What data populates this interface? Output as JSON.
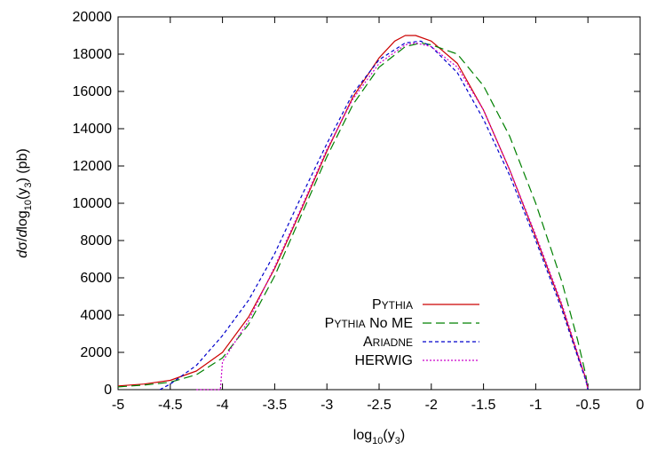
{
  "chart_data": {
    "type": "line",
    "xlabel": {
      "base": "log",
      "sub1": "10",
      "mid": "(y",
      "sub2": "3",
      "end": ")"
    },
    "ylabel": {
      "pre": "d",
      "sigma": "σ",
      "slash": "/",
      "d2": "d",
      "log": "log",
      "sub1": "10",
      "mid": "(y",
      "sub2": "3",
      "end": ") (pb)"
    },
    "xlim": [
      -5,
      0
    ],
    "ylim": [
      0,
      20000
    ],
    "xticks": [
      -5,
      -4.5,
      -4,
      -3.5,
      -3,
      -2.5,
      -2,
      -1.5,
      -1,
      -0.5,
      0
    ],
    "xtick_labels": [
      "-5",
      "-4.5",
      "-4",
      "-3.5",
      "-3",
      "-2.5",
      "-2",
      "-1.5",
      "-1",
      "-0.5",
      "0"
    ],
    "yticks": [
      0,
      2000,
      4000,
      6000,
      8000,
      10000,
      12000,
      14000,
      16000,
      18000,
      20000
    ],
    "ytick_labels": [
      "0",
      "2000",
      "4000",
      "6000",
      "8000",
      "10000",
      "12000",
      "14000",
      "16000",
      "18000",
      "20000"
    ],
    "grid": false,
    "legend_position": "bottom-center",
    "series": [
      {
        "name": {
          "cap": "P",
          "small": "YTHIA",
          "rest": ""
        },
        "color": "#cc0000",
        "dash": "",
        "x": [
          -5.0,
          -4.75,
          -4.5,
          -4.25,
          -4.0,
          -3.75,
          -3.5,
          -3.25,
          -3.0,
          -2.75,
          -2.5,
          -2.35,
          -2.25,
          -2.15,
          -2.0,
          -1.75,
          -1.5,
          -1.25,
          -1.0,
          -0.75,
          -0.6,
          -0.52,
          -0.5
        ],
        "y": [
          200,
          300,
          500,
          1000,
          2000,
          3900,
          6500,
          9600,
          12800,
          15700,
          17800,
          18700,
          19000,
          19000,
          18700,
          17500,
          15000,
          11800,
          8200,
          4500,
          1900,
          600,
          0
        ]
      },
      {
        "name": {
          "cap": "P",
          "small": "YTHIA",
          "rest": " No ME"
        },
        "color": "#008000",
        "dash": "10,5",
        "x": [
          -5.0,
          -4.75,
          -4.5,
          -4.25,
          -4.0,
          -3.75,
          -3.5,
          -3.25,
          -3.0,
          -2.75,
          -2.5,
          -2.25,
          -2.1,
          -2.0,
          -1.75,
          -1.5,
          -1.25,
          -1.0,
          -0.75,
          -0.6,
          -0.52,
          -0.5
        ],
        "y": [
          150,
          250,
          400,
          800,
          1700,
          3500,
          6100,
          9300,
          12500,
          15300,
          17300,
          18400,
          18600,
          18500,
          18000,
          16300,
          13600,
          10000,
          5800,
          2700,
          800,
          0
        ]
      },
      {
        "name": {
          "cap": "A",
          "small": "RIADNE",
          "rest": ""
        },
        "color": "#0000cc",
        "dash": "4,3",
        "x": [
          -4.6,
          -4.5,
          -4.25,
          -4.0,
          -3.75,
          -3.5,
          -3.25,
          -3.0,
          -2.75,
          -2.5,
          -2.25,
          -2.1,
          -2.0,
          -1.75,
          -1.5,
          -1.25,
          -1.0,
          -0.75,
          -0.6,
          -0.52,
          -0.5
        ],
        "y": [
          0,
          300,
          1300,
          2900,
          4800,
          7300,
          10300,
          13200,
          15900,
          17700,
          18600,
          18700,
          18400,
          17000,
          14500,
          11500,
          8000,
          4300,
          1800,
          500,
          0
        ]
      },
      {
        "name": {
          "cap": "",
          "small": "",
          "rest": "HERWIG"
        },
        "color": "#cc00cc",
        "dash": "2,2",
        "x": [
          -4.25,
          -4.1,
          -4.02,
          -4.0,
          -3.75,
          -3.5,
          -3.25,
          -3.0,
          -2.75,
          -2.5,
          -2.25,
          -2.15,
          -2.0,
          -1.75,
          -1.5,
          -1.25,
          -1.0,
          -0.75,
          -0.6,
          -0.52,
          -0.5
        ],
        "y": [
          0,
          0,
          0,
          1500,
          3700,
          6600,
          9700,
          12900,
          15600,
          17500,
          18500,
          18600,
          18400,
          17300,
          15000,
          11800,
          8300,
          4600,
          2000,
          600,
          0
        ]
      }
    ]
  }
}
